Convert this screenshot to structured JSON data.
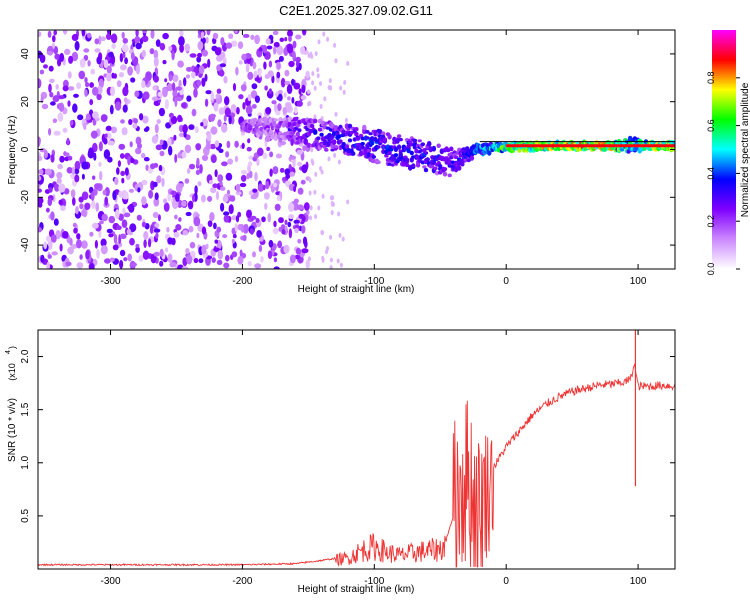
{
  "title": "C2E1.2025.327.09.02.G11",
  "chart_data": [
    {
      "type": "heatmap",
      "id": "spectrogram",
      "xlabel": "Height of straight line (km)",
      "ylabel": "Frequency (Hz)",
      "xlim": [
        -355,
        128
      ],
      "ylim": [
        -50,
        50
      ],
      "xticks": [
        -300,
        -200,
        -100,
        0,
        100
      ],
      "xtick_labels": [
        "-300",
        "-200",
        "-100",
        "0",
        "100"
      ],
      "yticks": [
        -40,
        -20,
        0,
        20,
        40
      ],
      "ytick_labels": [
        "-40",
        "-20",
        "0",
        "20",
        "40"
      ],
      "colorbar": {
        "label": "Normalized spectral amplitude",
        "range": [
          0,
          1
        ],
        "ticks": [
          0.0,
          0.2,
          0.4,
          0.6,
          0.8
        ],
        "tick_labels": [
          "0.0",
          "0.2",
          "0.4",
          "0.6",
          "0.8"
        ],
        "colors": [
          "#ffffff",
          "#cc88ff",
          "#7f00ff",
          "#0000ff",
          "#00ffff",
          "#00ff00",
          "#ffff00",
          "#ff0000",
          "#ff00ff"
        ]
      },
      "noise_region": {
        "x_range": [
          -355,
          -150
        ],
        "amplitude": [
          0.05,
          0.3
        ]
      },
      "signal_track": [
        {
          "x": -200,
          "freq": 10,
          "spread": 2,
          "amp": 0.3
        },
        {
          "x": -180,
          "freq": 9,
          "spread": 4,
          "amp": 0.25
        },
        {
          "x": -160,
          "freq": 8,
          "spread": 5,
          "amp": 0.35
        },
        {
          "x": -140,
          "freq": 6,
          "spread": 6,
          "amp": 0.4
        },
        {
          "x": -120,
          "freq": 4,
          "spread": 6,
          "amp": 0.45
        },
        {
          "x": -100,
          "freq": 2,
          "spread": 7,
          "amp": 0.45
        },
        {
          "x": -80,
          "freq": -1,
          "spread": 7,
          "amp": 0.45
        },
        {
          "x": -60,
          "freq": -3,
          "spread": 6,
          "amp": 0.45
        },
        {
          "x": -40,
          "freq": -6,
          "spread": 6,
          "amp": 0.4
        },
        {
          "x": -30,
          "freq": -2,
          "spread": 3,
          "amp": 0.45
        },
        {
          "x": -20,
          "freq": 0,
          "spread": 2,
          "amp": 0.55
        },
        {
          "x": 0,
          "freq": 1,
          "spread": 1.5,
          "amp": 0.75
        },
        {
          "x": 40,
          "freq": 1.5,
          "spread": 1.5,
          "amp": 0.9
        },
        {
          "x": 80,
          "freq": 1.5,
          "spread": 1.5,
          "amp": 0.9
        },
        {
          "x": 95,
          "freq": 2,
          "spread": 3,
          "amp": 0.6
        },
        {
          "x": 110,
          "freq": 1.5,
          "spread": 1.5,
          "amp": 0.85
        },
        {
          "x": 128,
          "freq": 1.5,
          "spread": 1.5,
          "amp": 0.85
        }
      ]
    },
    {
      "type": "line",
      "id": "snr",
      "xlabel": "Height of straight line (km)",
      "ylabel": "SNR (10 * v/v)",
      "scale_label": "(x10",
      "scale_exponent": "4",
      "xlim": [
        -355,
        128
      ],
      "ylim": [
        0,
        2.25
      ],
      "xticks": [
        -300,
        -200,
        -100,
        0,
        100
      ],
      "xtick_labels": [
        "-300",
        "-200",
        "-100",
        "0",
        "100"
      ],
      "yticks": [
        0.5,
        1.0,
        1.5,
        2.0
      ],
      "ytick_labels": [
        "0.5",
        "1.0",
        "1.5",
        "2.0"
      ],
      "color": "#ee3333",
      "series": [
        {
          "name": "SNR",
          "x": [
            -355,
            -300,
            -250,
            -200,
            -160,
            -140,
            -120,
            -110,
            -100,
            -90,
            -80,
            -70,
            -60,
            -50,
            -45,
            -40,
            -35,
            -30,
            -25,
            -20,
            -15,
            -10,
            0,
            10,
            20,
            30,
            40,
            50,
            60,
            70,
            80,
            90,
            95,
            97,
            100,
            110,
            120,
            128
          ],
          "y": [
            0.04,
            0.04,
            0.04,
            0.04,
            0.05,
            0.08,
            0.12,
            0.2,
            0.25,
            0.18,
            0.15,
            0.18,
            0.2,
            0.22,
            0.3,
            0.5,
            0.8,
            0.9,
            0.7,
            0.5,
            0.8,
            0.95,
            1.15,
            1.3,
            1.45,
            1.55,
            1.62,
            1.67,
            1.7,
            1.73,
            1.74,
            1.76,
            1.8,
            1.95,
            1.72,
            1.72,
            1.73,
            1.72
          ]
        }
      ],
      "envelope": [
        {
          "x": -40,
          "hi": 1.5
        },
        {
          "x": -30,
          "hi": 1.6
        },
        {
          "x": -20,
          "hi": 1.3
        },
        {
          "x": -10,
          "hi": 1.2
        }
      ],
      "spike": {
        "x": 98,
        "hi": 2.25,
        "lo": 0.78
      }
    }
  ]
}
